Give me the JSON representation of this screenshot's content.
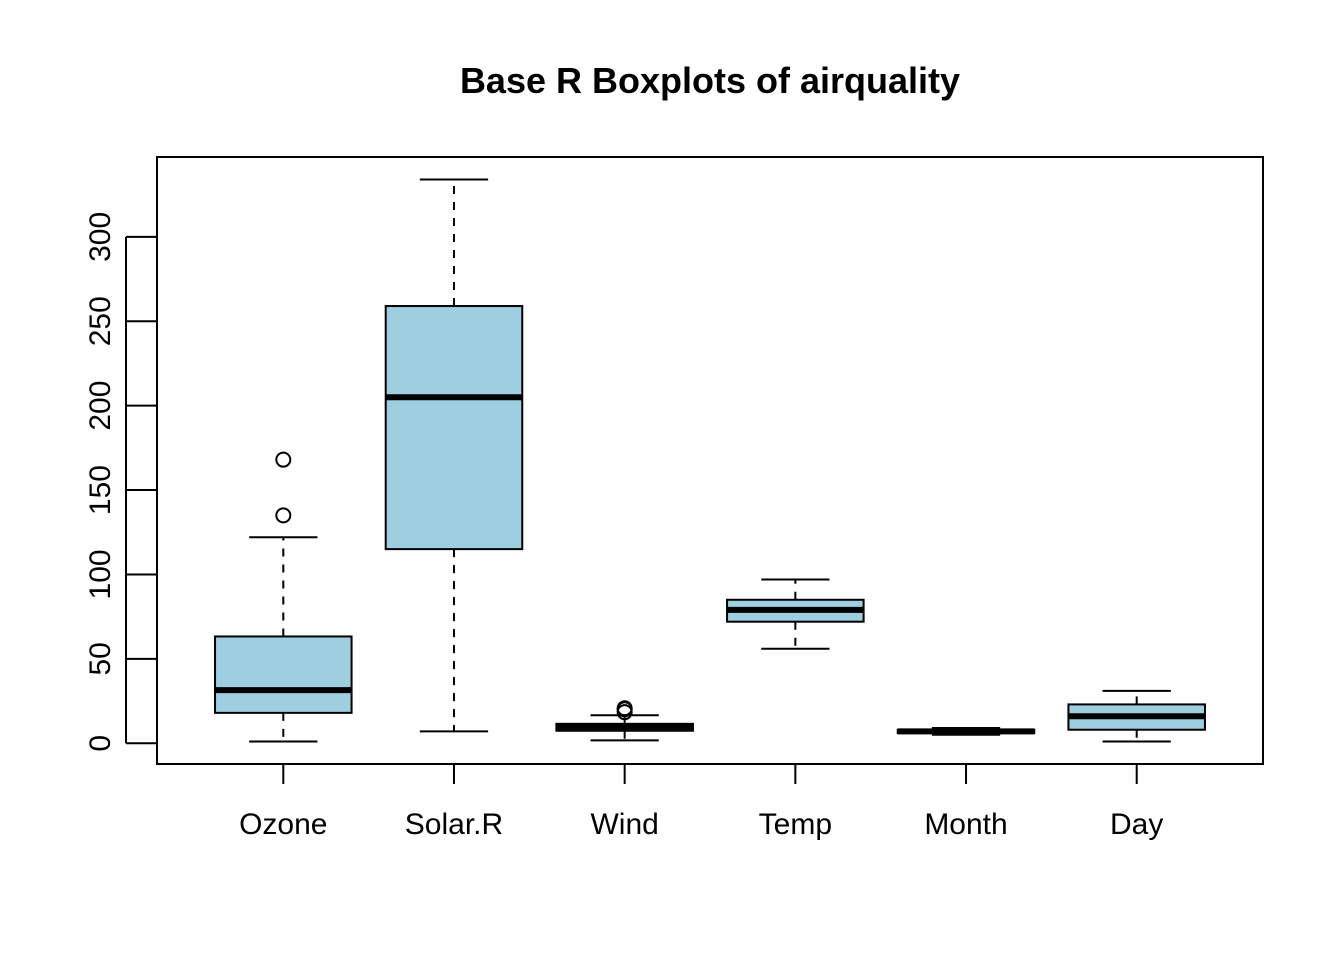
{
  "chart_data": {
    "type": "boxplot",
    "title": "Base R Boxplots of airquality",
    "xlabel": "",
    "ylabel": "",
    "categories": [
      "Ozone",
      "Solar.R",
      "Wind",
      "Temp",
      "Month",
      "Day"
    ],
    "yticks": [
      0,
      50,
      100,
      150,
      200,
      250,
      300
    ],
    "ylim": [
      -12.3,
      347.3
    ],
    "grid": false,
    "box_color": "#9ecfe0",
    "series": [
      {
        "category": "Ozone",
        "min": 1,
        "q1": 18,
        "median": 31.5,
        "q3": 63.25,
        "max": 122,
        "outliers": [
          135,
          168
        ]
      },
      {
        "category": "Solar.R",
        "min": 7,
        "q1": 115,
        "median": 205,
        "q3": 259,
        "max": 334,
        "outliers": []
      },
      {
        "category": "Wind",
        "min": 1.7,
        "q1": 7.4,
        "median": 9.7,
        "q3": 11.5,
        "max": 16.6,
        "outliers": [
          20.1,
          18.4,
          20.7
        ]
      },
      {
        "category": "Temp",
        "min": 56,
        "q1": 72,
        "median": 79,
        "q3": 85,
        "max": 97,
        "outliers": []
      },
      {
        "category": "Month",
        "min": 5,
        "q1": 6,
        "median": 7,
        "q3": 8,
        "max": 9,
        "outliers": []
      },
      {
        "category": "Day",
        "min": 1,
        "q1": 8,
        "median": 16,
        "q3": 23,
        "max": 31,
        "outliers": []
      }
    ]
  }
}
